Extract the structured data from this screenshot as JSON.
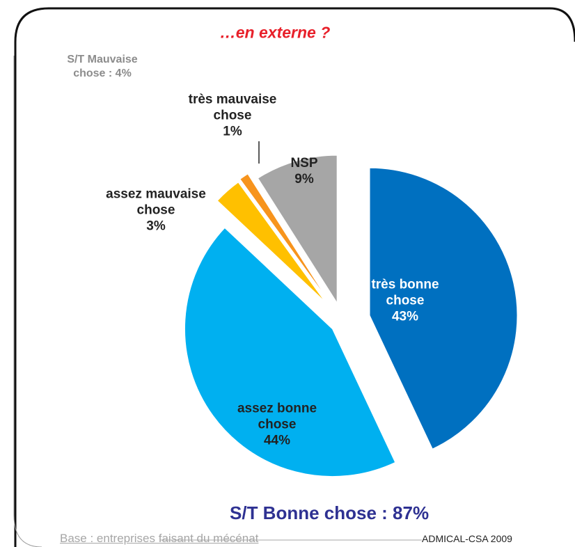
{
  "chart_data": {
    "type": "pie",
    "title": "…en externe ?",
    "categories": [
      "très bonne chose",
      "assez bonne chose",
      "assez mauvaise chose",
      "très mauvaise chose",
      "NSP"
    ],
    "values": [
      43,
      44,
      3,
      1,
      9
    ],
    "value_labels": [
      "43%",
      "44%",
      "3%",
      "1%",
      "9%"
    ],
    "colors": [
      "#0070c0",
      "#00b0f0",
      "#ffc000",
      "#f7941d",
      "#a6a6a6"
    ],
    "annotations": [
      "S/T Mauvaise chose : 4%",
      "S/T Bonne chose : 87%",
      "Base :  entreprises faisant du mécénat",
      "ADMICAL-CSA 2009"
    ]
  }
}
